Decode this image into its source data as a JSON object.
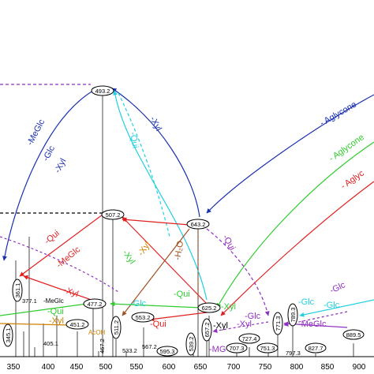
{
  "axis": {
    "ticks": [
      "350",
      "400",
      "450",
      "500",
      "550",
      "600",
      "650",
      "700",
      "750",
      "800",
      "850",
      "900"
    ]
  },
  "peaks": [
    "493.2",
    "507.2",
    "643.2",
    "625.2",
    "361.1",
    "345.1",
    "477.2",
    "451.2",
    "511.2",
    "553.2",
    "539.2",
    "657.2",
    "727.4",
    "707.3",
    "751.3",
    "771.3",
    "789.3",
    "827.7",
    "889.5",
    "595.3"
  ],
  "plain_labels": [
    "377.1",
    "405.1",
    "533.2",
    "567.2",
    "797.3",
    "467.2"
  ],
  "arrows": [
    "-MeGlc",
    "-Glc",
    "-Xyl",
    "-Xyl",
    "-Qui",
    "- Aglycone",
    "- Aglycone",
    "- Aglyc",
    "-Qui",
    "-MeGlc",
    "-Xyl",
    "-Xyl",
    "-H₂O",
    "-Qui",
    "-Xyl",
    "-Glc",
    "-Qui",
    "-Xyl",
    "-Qui",
    "-Xyl",
    "-MG",
    "-Glc",
    "-Glc",
    "-MeGlc",
    "-Glc",
    "-Xyl",
    "-MeGlc",
    "-Qui",
    "-Xyl",
    "-Glc",
    "AcOH"
  ]
}
